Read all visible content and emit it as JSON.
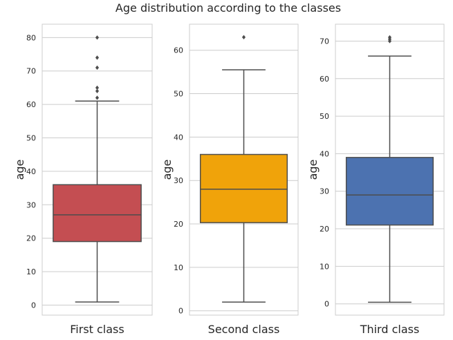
{
  "title": "Age distribution according to the classes",
  "chart_data": [
    {
      "type": "box",
      "name": "First class",
      "xlabel": "First class",
      "ylabel": "age",
      "color": "#c44e52",
      "ylim": [
        -3,
        84
      ],
      "yticks": [
        0,
        10,
        20,
        30,
        40,
        50,
        60,
        70,
        80
      ],
      "grid": true,
      "stats": {
        "whisker_low": 0.92,
        "q1": 19,
        "median": 27,
        "q3": 36,
        "whisker_high": 61
      },
      "outliers": [
        62,
        64,
        65,
        71,
        74,
        80
      ]
    },
    {
      "type": "box",
      "name": "Second class",
      "xlabel": "Second class",
      "ylabel": "age",
      "color": "#f0a30a",
      "ylim": [
        -1,
        66
      ],
      "yticks": [
        0,
        10,
        20,
        30,
        40,
        50,
        60
      ],
      "grid": true,
      "stats": {
        "whisker_low": 2,
        "q1": 20.3,
        "median": 28,
        "q3": 36,
        "whisker_high": 55.5
      },
      "outliers": [
        63
      ]
    },
    {
      "type": "box",
      "name": "Third class",
      "xlabel": "Third class",
      "ylabel": "age",
      "color": "#4c72b0",
      "ylim": [
        -3,
        74.5
      ],
      "yticks": [
        0,
        10,
        20,
        30,
        40,
        50,
        60,
        70
      ],
      "grid": true,
      "stats": {
        "whisker_low": 0.42,
        "q1": 21,
        "median": 29,
        "q3": 39,
        "whisker_high": 66
      },
      "outliers": [
        70,
        70.5,
        71
      ]
    }
  ]
}
